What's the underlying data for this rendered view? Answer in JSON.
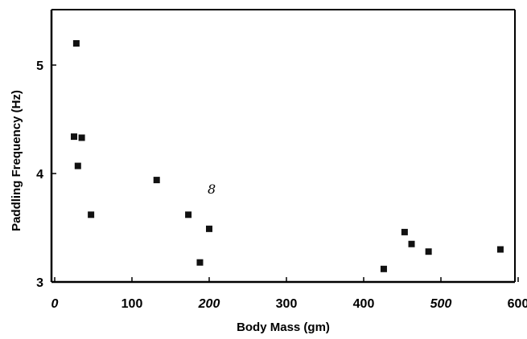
{
  "chart_data": {
    "type": "scatter",
    "title": "",
    "xlabel": "Body Mass (gm)",
    "ylabel": "Paddling Frequency (Hz)",
    "xlim": [
      0,
      600
    ],
    "ylim": [
      3,
      5.5
    ],
    "x_ticks": [
      "0",
      "100",
      "200",
      "300",
      "400",
      "500",
      "600"
    ],
    "y_ticks": [
      "3",
      "4",
      "5"
    ],
    "grid": false,
    "legend": "none",
    "marker_color": "#111111",
    "annotation": "8",
    "series": [
      {
        "points": [
          {
            "x": 28,
            "y": 5.2
          },
          {
            "x": 25,
            "y": 4.34
          },
          {
            "x": 35,
            "y": 4.33
          },
          {
            "x": 30,
            "y": 4.07
          },
          {
            "x": 47,
            "y": 3.62
          },
          {
            "x": 132,
            "y": 3.94
          },
          {
            "x": 173,
            "y": 3.62
          },
          {
            "x": 200,
            "y": 3.49
          },
          {
            "x": 188,
            "y": 3.18
          },
          {
            "x": 426,
            "y": 3.12
          },
          {
            "x": 453,
            "y": 3.46
          },
          {
            "x": 462,
            "y": 3.35
          },
          {
            "x": 484,
            "y": 3.28
          },
          {
            "x": 577,
            "y": 3.3
          }
        ]
      }
    ]
  }
}
